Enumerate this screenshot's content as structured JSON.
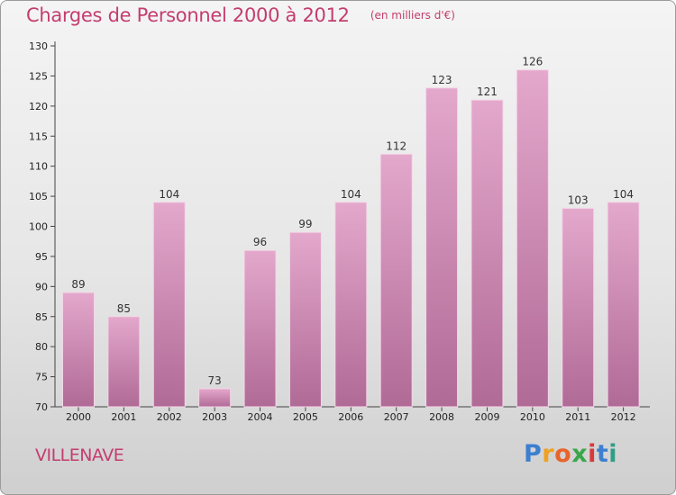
{
  "header": {
    "title": "Charges de Personnel 2000 à 2012",
    "subtitle": "(en milliers d'€)"
  },
  "footer": {
    "city": "VILLENAVE",
    "logo": [
      "P",
      "r",
      "o",
      "x",
      "i",
      "t",
      "i"
    ],
    "logo_colors": [
      "#3d7fd0",
      "#f0a11f",
      "#e8642a",
      "#3aa64a",
      "#d83a3a",
      "#3d7fd0",
      "#2f9e86"
    ]
  },
  "chart_data": {
    "type": "bar",
    "title": "Charges de Personnel 2000 à 2012",
    "subtitle": "(en milliers d'€)",
    "categories": [
      "2000",
      "2001",
      "2002",
      "2003",
      "2004",
      "2005",
      "2006",
      "2007",
      "2008",
      "2009",
      "2010",
      "2011",
      "2012"
    ],
    "values": [
      89,
      85,
      104,
      73,
      96,
      99,
      104,
      112,
      123,
      121,
      126,
      103,
      104
    ],
    "ylim": [
      70,
      130
    ],
    "yticks": [
      70,
      75,
      80,
      85,
      90,
      95,
      100,
      105,
      110,
      115,
      120,
      125,
      130
    ],
    "grid": false,
    "bar_color_top": "#e4a8cc",
    "bar_color_bottom": "#b06a96",
    "bar_edge": "#f3d6e7"
  }
}
